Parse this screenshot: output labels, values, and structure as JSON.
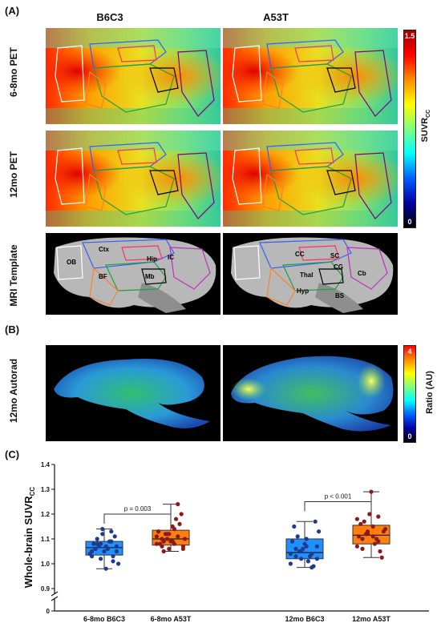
{
  "panels": {
    "a": "(A)",
    "b": "(B)",
    "c": "(C)"
  },
  "columns": [
    "B6C3",
    "A53T"
  ],
  "rows": {
    "pet_68": "6-8mo PET",
    "pet_12": "12mo PET",
    "mri": "MRI Template",
    "autorad": "12mo Autorad"
  },
  "colorbar_pet": {
    "title_main": "SUVR",
    "title_sub": "CC",
    "max": "1.5",
    "min": "0"
  },
  "colorbar_autorad": {
    "title": "Ratio (AU)",
    "max": "4",
    "min": "0"
  },
  "mri_labels_left": {
    "ob": "OB",
    "ctx": "Ctx",
    "hip": "Hip",
    "ic": "IC",
    "bf": "BF",
    "mb": "Mb"
  },
  "mri_labels_right": {
    "cc": "CC",
    "sc": "SC",
    "cg": "CG",
    "thal": "Thal",
    "cb": "Cb",
    "hyp": "Hyp",
    "bs": "BS"
  },
  "colors": {
    "b6c3_box": "#1e90ff",
    "a53t_box": "#ff7f0e",
    "b6c3_point": "#1f3a8a",
    "a53t_point": "#8b1a1a"
  },
  "chart_data": {
    "type": "box",
    "ylabel_main": "Whole-brain SUVR",
    "ylabel_sub": "CC",
    "yticks": [
      "0.9",
      "1.0",
      "1.1",
      "1.2",
      "1.3",
      "1.4"
    ],
    "ytick_zero": "0",
    "ylim": [
      0.9,
      1.4
    ],
    "axis_break": true,
    "categories": [
      "6-8mo B6C3",
      "6-8mo A53T",
      "12mo B6C3",
      "12mo A53T"
    ],
    "boxes": [
      {
        "min": 0.98,
        "q1": 1.035,
        "median": 1.065,
        "q3": 1.09,
        "max": 1.14
      },
      {
        "min": 1.05,
        "q1": 1.075,
        "median": 1.1,
        "q3": 1.135,
        "max": 1.24
      },
      {
        "min": 0.985,
        "q1": 1.02,
        "median": 1.045,
        "q3": 1.1,
        "max": 1.17
      },
      {
        "min": 1.025,
        "q1": 1.08,
        "median": 1.115,
        "q3": 1.155,
        "max": 1.29
      }
    ],
    "points": [
      [
        1.04,
        1.06,
        1.08,
        1.07,
        1.09,
        1.05,
        1.03,
        1.1,
        1.12,
        1.06,
        1.01,
        1.0,
        1.08,
        1.07,
        1.05,
        1.09,
        1.11,
        1.04,
        1.06,
        1.02,
        0.98,
        1.13,
        1.07,
        1.05,
        1.08,
        1.14,
        1.06,
        1.03
      ],
      [
        1.08,
        1.1,
        1.12,
        1.09,
        1.11,
        1.07,
        1.13,
        1.05,
        1.06,
        1.14,
        1.16,
        1.1,
        1.08,
        1.12,
        1.09,
        1.18,
        1.2,
        1.11,
        1.07,
        1.1,
        1.15,
        1.24,
        1.06,
        1.13,
        1.09,
        1.12,
        1.08
      ],
      [
        1.0,
        1.03,
        1.05,
        1.07,
        1.04,
        1.02,
        1.09,
        1.11,
        1.06,
        1.01,
        0.99,
        1.13,
        1.15,
        1.05,
        1.08,
        1.03,
        1.17,
        1.04,
        1.06,
        1.02,
        1.1,
        0.985,
        1.07
      ],
      [
        1.07,
        1.1,
        1.12,
        1.15,
        1.09,
        1.13,
        1.11,
        1.17,
        1.2,
        1.08,
        1.05,
        1.14,
        1.16,
        1.12,
        1.29,
        1.1,
        1.025,
        1.18,
        1.06,
        1.13,
        1.11,
        1.19
      ]
    ],
    "comparisons": [
      {
        "from": 0,
        "to": 1,
        "y": 1.2,
        "label": "p = 0.003"
      },
      {
        "from": 2,
        "to": 3,
        "y": 1.25,
        "label": "p < 0.001"
      }
    ]
  }
}
